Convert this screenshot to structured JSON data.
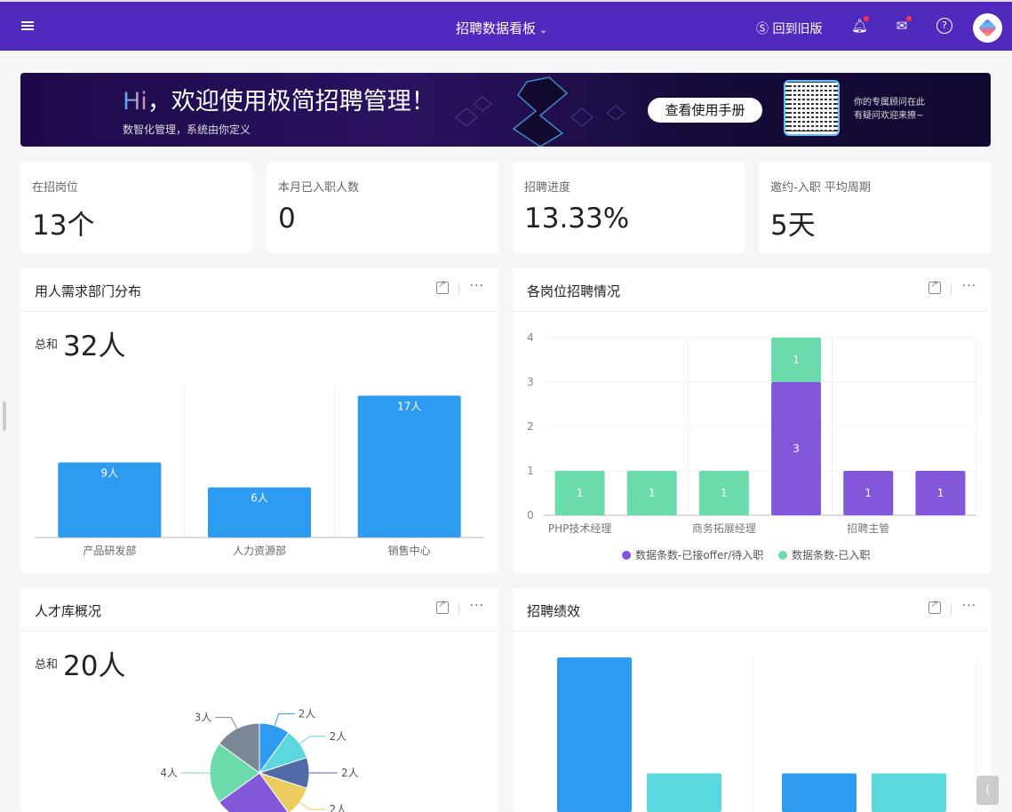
{
  "header": {
    "title": "招聘数据看板",
    "back_old": "回到旧版",
    "icons": [
      "menu-icon",
      "chevron-down-icon",
      "switch-icon",
      "bell-icon",
      "inbox-icon",
      "help-icon",
      "avatar"
    ]
  },
  "banner": {
    "hi": "Hi",
    "welcome": "，欢迎使用极简招聘管理！",
    "subtitle": "数智化管理，系统由你定义",
    "manual_button": "查看使用手册",
    "qr_text_1": "你的专属顾问在此",
    "qr_text_2": "有疑问欢迎来撩~"
  },
  "stats": [
    {
      "label": "在招岗位",
      "value": "13个"
    },
    {
      "label": "本月已入职人数",
      "value": "0"
    },
    {
      "label": "招聘进度",
      "value": "13.33%"
    },
    {
      "label": "邀约-入职 平均周期",
      "value": "5天"
    }
  ],
  "panels": {
    "dept": {
      "title": "用人需求部门分布",
      "total_label": "总和",
      "total_value": "32人"
    },
    "positions": {
      "title": "各岗位招聘情况"
    },
    "talent": {
      "title": "人才库概况",
      "total_label": "总和",
      "total_value": "20人"
    },
    "performance": {
      "title": "招聘绩效"
    }
  },
  "colors": {
    "primary": "#5229bd",
    "blue": "#2d9bf0",
    "green": "#6cdbac",
    "purple": "#8257d9"
  },
  "chart_data": [
    {
      "type": "bar",
      "categories": [
        "产品研发部",
        "人力资源部",
        "销售中心"
      ],
      "values": [
        9,
        6,
        17
      ],
      "data_labels": [
        "9人",
        "6人",
        "17人"
      ],
      "ylim": [
        0,
        18
      ],
      "grid": true
    },
    {
      "type": "bar",
      "stacked": true,
      "categories": [
        "PHP技术经理",
        "",
        "商务拓展经理",
        "",
        "招聘主管",
        ""
      ],
      "yticks": [
        "0",
        "1",
        "2",
        "3",
        "4"
      ],
      "ylim": [
        0,
        4
      ],
      "grid": true,
      "legend": "bottom",
      "series": [
        {
          "name": "数据条数-已接offer/待入职",
          "color": "#8257d9",
          "values": [
            0,
            0,
            0,
            3,
            1,
            1
          ]
        },
        {
          "name": "数据条数-已入职",
          "color": "#6cdbac",
          "values": [
            1,
            1,
            1,
            1,
            0,
            0
          ]
        }
      ]
    },
    {
      "type": "pie",
      "values": [
        2,
        2,
        2,
        2,
        5,
        4,
        3
      ],
      "labels": [
        "2人",
        "2人",
        "2人",
        "2人",
        "",
        "4人",
        "3人"
      ],
      "colors": [
        "#2d9bf0",
        "#5ad8de",
        "#4f6aa6",
        "#eccb5f",
        "#8257d9",
        "#6cdbac",
        "#7a8896"
      ]
    },
    {
      "type": "bar",
      "values": [
        4,
        1,
        1,
        1
      ],
      "colors": [
        "#2d9bf0",
        "#5ad8de",
        "#2d9bf0",
        "#5ad8de"
      ]
    }
  ]
}
